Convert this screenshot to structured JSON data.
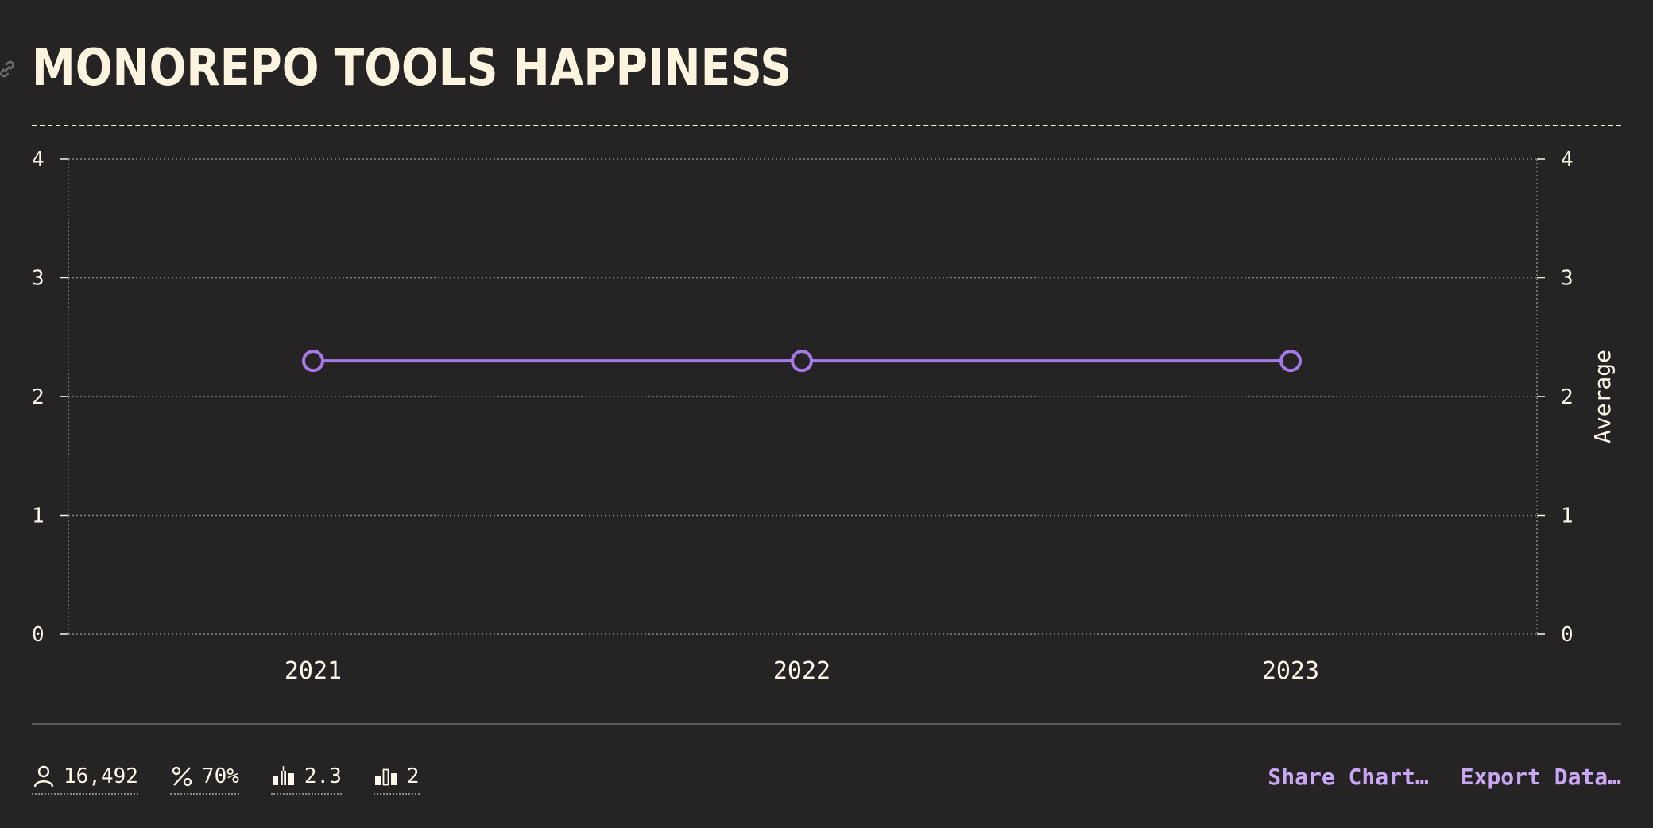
{
  "header": {
    "title": "Monorepo Tools Happiness"
  },
  "chart_data": {
    "type": "line",
    "title": "Monorepo Tools Happiness",
    "categories": [
      "2021",
      "2022",
      "2023"
    ],
    "series": [
      {
        "values": [
          2.3,
          2.3,
          2.3
        ],
        "color": "#a57ae8"
      }
    ],
    "ylabel_right": "Average",
    "ylim": [
      0,
      4
    ],
    "yticks": [
      0,
      1,
      2,
      3,
      4
    ],
    "grid": true
  },
  "footer": {
    "stats": [
      {
        "icon": "person-icon",
        "value": "16,492"
      },
      {
        "icon": "percent-icon",
        "value": "70%"
      },
      {
        "icon": "average-bars-icon",
        "value": "2.3"
      },
      {
        "icon": "median-bars-icon",
        "value": "2"
      }
    ],
    "actions": {
      "share": "Share Chart…",
      "export": "Export Data…"
    }
  },
  "colors": {
    "background": "#262324",
    "text": "#fdf7e9",
    "accent": "#c9a7f5",
    "line": "#a57ae8"
  }
}
